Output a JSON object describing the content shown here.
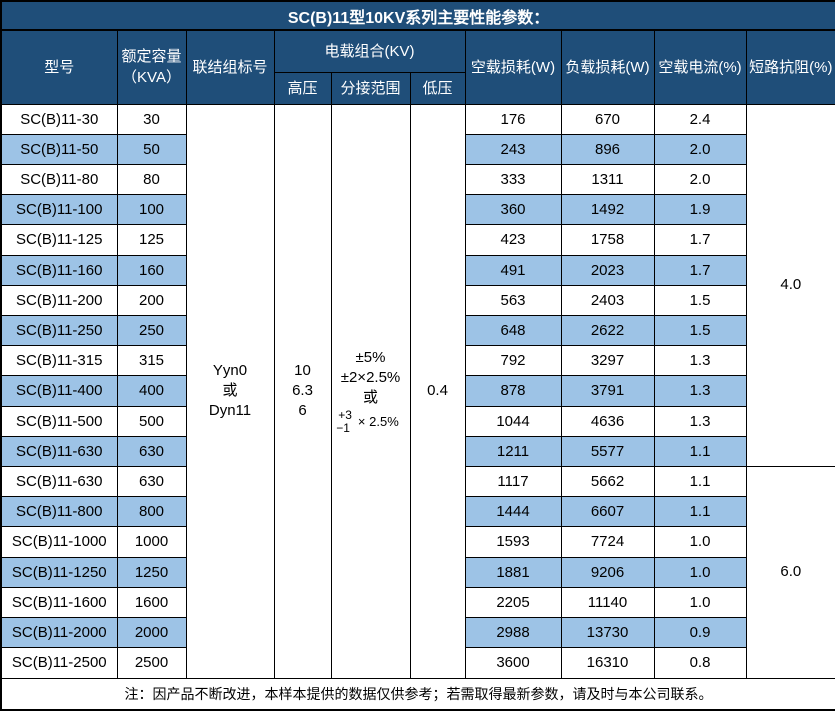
{
  "title": "SC(B)11型10KV系列主要性能参数：",
  "note": "注：因产品不断改进，本样本提供的数据仅供参考；若需取得最新参数，请及时与本公司联系。",
  "colors": {
    "header_bg": "#1f4e79",
    "stripe_bg": "#9dc3e6",
    "row_bg": "#ffffff",
    "border": "#000000",
    "header_text": "#ffffff",
    "body_text": "#000000"
  },
  "table": {
    "headers": {
      "model": "型号",
      "capacity_line1": "额定容量",
      "capacity_line2": "（KVA）",
      "connection": "联结组标号",
      "voltage_group": "电载组合(KV)",
      "hv": "高压",
      "tap_range": "分接范围",
      "lv": "低压",
      "no_load_loss": "空载损耗(W)",
      "load_loss": "负载损耗(W)",
      "no_load_current": "空载电流(%)",
      "impedance": "短路抗阻(%)"
    },
    "merged": {
      "connection_lines": [
        "Yyn0",
        "或",
        "Dyn11"
      ],
      "hv_lines": [
        "10",
        "6.3",
        "6"
      ],
      "tap_lines": [
        "±5%",
        "±2×2.5%",
        "或"
      ],
      "tap_fraction_top": "+3",
      "tap_fraction_bottom": "−1",
      "tap_fraction_suffix": "× 2.5%",
      "lv_value": "0.4",
      "impedance_groups": [
        {
          "value": "4.0",
          "row_span": 12
        },
        {
          "value": "6.0",
          "row_span": 7
        }
      ]
    },
    "rows": [
      {
        "model": "SC(B)11-30",
        "kva": "30",
        "no_load_loss": "176",
        "load_loss": "670",
        "no_load_current": "2.4"
      },
      {
        "model": "SC(B)11-50",
        "kva": "50",
        "no_load_loss": "243",
        "load_loss": "896",
        "no_load_current": "2.0"
      },
      {
        "model": "SC(B)11-80",
        "kva": "80",
        "no_load_loss": "333",
        "load_loss": "1311",
        "no_load_current": "2.0"
      },
      {
        "model": "SC(B)11-100",
        "kva": "100",
        "no_load_loss": "360",
        "load_loss": "1492",
        "no_load_current": "1.9"
      },
      {
        "model": "SC(B)11-125",
        "kva": "125",
        "no_load_loss": "423",
        "load_loss": "1758",
        "no_load_current": "1.7"
      },
      {
        "model": "SC(B)11-160",
        "kva": "160",
        "no_load_loss": "491",
        "load_loss": "2023",
        "no_load_current": "1.7"
      },
      {
        "model": "SC(B)11-200",
        "kva": "200",
        "no_load_loss": "563",
        "load_loss": "2403",
        "no_load_current": "1.5"
      },
      {
        "model": "SC(B)11-250",
        "kva": "250",
        "no_load_loss": "648",
        "load_loss": "2622",
        "no_load_current": "1.5"
      },
      {
        "model": "SC(B)11-315",
        "kva": "315",
        "no_load_loss": "792",
        "load_loss": "3297",
        "no_load_current": "1.3"
      },
      {
        "model": "SC(B)11-400",
        "kva": "400",
        "no_load_loss": "878",
        "load_loss": "3791",
        "no_load_current": "1.3"
      },
      {
        "model": "SC(B)11-500",
        "kva": "500",
        "no_load_loss": "1044",
        "load_loss": "4636",
        "no_load_current": "1.3"
      },
      {
        "model": "SC(B)11-630",
        "kva": "630",
        "no_load_loss": "1211",
        "load_loss": "5577",
        "no_load_current": "1.1"
      },
      {
        "model": "SC(B)11-630",
        "kva": "630",
        "no_load_loss": "1117",
        "load_loss": "5662",
        "no_load_current": "1.1"
      },
      {
        "model": "SC(B)11-800",
        "kva": "800",
        "no_load_loss": "1444",
        "load_loss": "6607",
        "no_load_current": "1.1"
      },
      {
        "model": "SC(B)11-1000",
        "kva": "1000",
        "no_load_loss": "1593",
        "load_loss": "7724",
        "no_load_current": "1.0"
      },
      {
        "model": "SC(B)11-1250",
        "kva": "1250",
        "no_load_loss": "1881",
        "load_loss": "9206",
        "no_load_current": "1.0"
      },
      {
        "model": "SC(B)11-1600",
        "kva": "1600",
        "no_load_loss": "2205",
        "load_loss": "11140",
        "no_load_current": "1.0"
      },
      {
        "model": "SC(B)11-2000",
        "kva": "2000",
        "no_load_loss": "2988",
        "load_loss": "13730",
        "no_load_current": "0.9"
      },
      {
        "model": "SC(B)11-2500",
        "kva": "2500",
        "no_load_loss": "3600",
        "load_loss": "16310",
        "no_load_current": "0.8"
      }
    ]
  }
}
